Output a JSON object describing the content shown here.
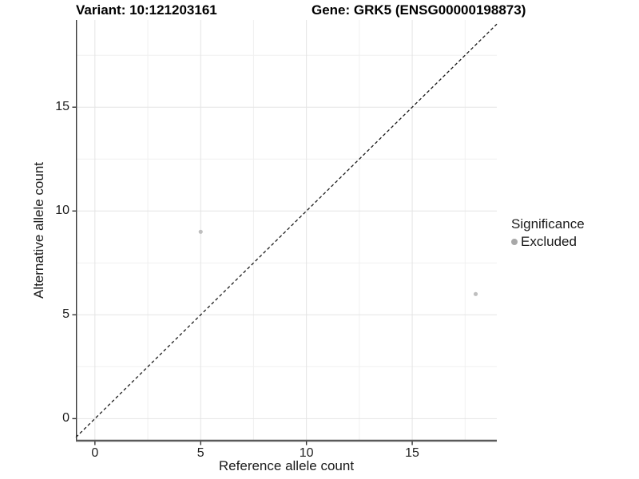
{
  "chart_data": {
    "type": "scatter",
    "title_left": "Variant: 10:121203161",
    "title_right": "Gene: GRK5 (ENSG00000198873)",
    "xlabel": "Reference allele count",
    "ylabel": "Alternative allele count",
    "xlim": [
      -0.9,
      19.0
    ],
    "ylim": [
      -1.1,
      19.2
    ],
    "x_ticks": [
      0,
      5,
      10,
      15
    ],
    "y_ticks": [
      0,
      5,
      10,
      15
    ],
    "x_minor_ticks": [
      2.5,
      7.5,
      12.5,
      17.5
    ],
    "y_minor_ticks": [
      2.5,
      7.5,
      12.5,
      17.5
    ],
    "grid": true,
    "series": [
      {
        "name": "Excluded",
        "color": "#bfbfbf",
        "marker_radius": 2.6,
        "points": [
          {
            "x": 5,
            "y": 9
          },
          {
            "x": 18,
            "y": 6
          }
        ]
      }
    ],
    "reference_line": {
      "type": "identity y = x",
      "style": "dashed",
      "color": "#1a1a1a",
      "from": {
        "x": -0.9,
        "y": -0.9
      },
      "to": {
        "x": 19.0,
        "y": 19.0
      }
    },
    "legend": {
      "title": "Significance",
      "position": "right",
      "items": [
        {
          "label": "Excluded",
          "color": "#a8a8a8"
        }
      ]
    },
    "colors": {
      "background": "#ffffff",
      "grid_major": "#e4e4e4",
      "grid_minor": "#f0f0f0",
      "axis_line_left": "#383838",
      "axis_line_bottom": "#5a5a5a",
      "tick_mark": "#333333"
    }
  }
}
